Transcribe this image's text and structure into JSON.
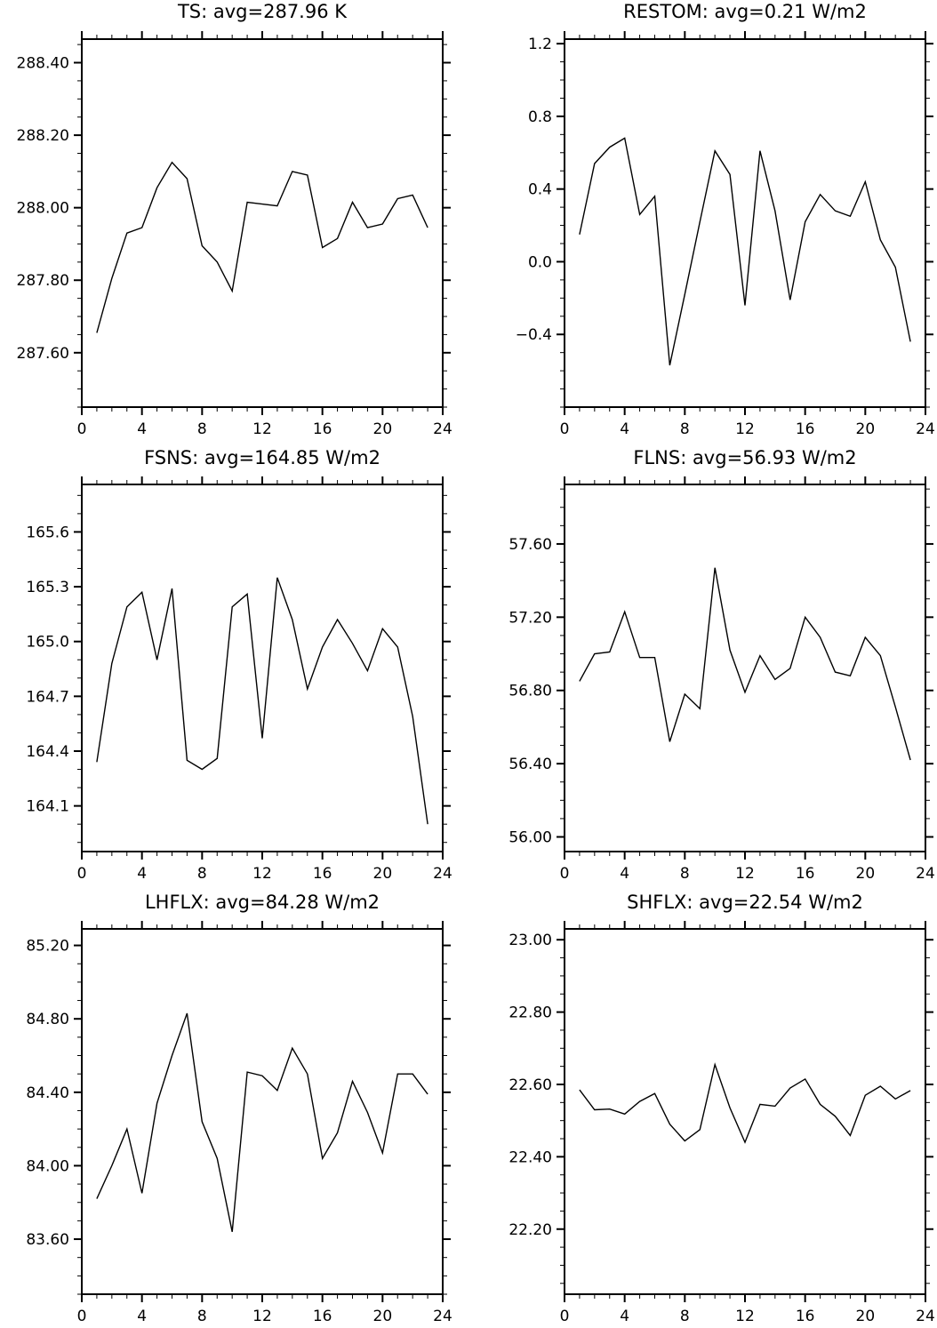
{
  "chart_data": [
    {
      "type": "line",
      "title": "TS: avg=287.96 K",
      "xlabel": "",
      "ylabel": "",
      "xlim": [
        0,
        24
      ],
      "ylim": [
        287.45,
        288.465
      ],
      "x_ticks": [
        0,
        4,
        8,
        12,
        16,
        20,
        24
      ],
      "x_tick_labels": [
        "0",
        "4",
        "8",
        "12",
        "16",
        "20",
        "24"
      ],
      "y_ticks": [
        287.6,
        287.8,
        288.0,
        288.2,
        288.4
      ],
      "y_tick_labels": [
        "287.60",
        "287.80",
        "288.00",
        "288.20",
        "288.40"
      ],
      "y_minor_step": 0.05,
      "grid": false,
      "x": [
        1,
        2,
        3,
        4,
        5,
        6,
        7,
        8,
        9,
        10,
        11,
        12,
        13,
        14,
        15,
        16,
        17,
        18,
        19,
        20,
        21,
        22,
        23
      ],
      "y": [
        287.655,
        287.805,
        287.93,
        287.945,
        288.055,
        288.125,
        288.08,
        287.895,
        287.85,
        287.77,
        288.015,
        288.01,
        288.005,
        288.1,
        288.09,
        287.89,
        287.915,
        288.015,
        287.945,
        287.955,
        288.025,
        288.035,
        287.945
      ]
    },
    {
      "type": "line",
      "title": "RESTOM: avg=0.21 W/m2",
      "xlabel": "",
      "ylabel": "",
      "xlim": [
        0,
        24
      ],
      "ylim": [
        -0.8,
        1.225
      ],
      "x_ticks": [
        0,
        4,
        8,
        12,
        16,
        20,
        24
      ],
      "x_tick_labels": [
        "0",
        "4",
        "8",
        "12",
        "16",
        "20",
        "24"
      ],
      "y_ticks": [
        -0.4,
        0.0,
        0.4,
        0.8,
        1.2
      ],
      "y_tick_labels": [
        "−0.4",
        "0.0",
        "0.4",
        "0.8",
        "1.2"
      ],
      "y_minor_step": 0.1,
      "grid": false,
      "x": [
        1,
        2,
        3,
        4,
        5,
        6,
        7,
        8,
        9,
        10,
        11,
        12,
        13,
        14,
        15,
        16,
        17,
        18,
        19,
        20,
        21,
        22,
        23
      ],
      "y": [
        0.15,
        0.54,
        0.63,
        0.68,
        0.26,
        0.36,
        -0.57,
        -0.18,
        0.22,
        0.61,
        0.48,
        -0.24,
        0.61,
        0.28,
        -0.21,
        0.22,
        0.37,
        0.28,
        0.25,
        0.44,
        0.12,
        -0.03,
        -0.44
      ]
    },
    {
      "type": "line",
      "title": "FSNS: avg=164.85 W/m2",
      "xlabel": "",
      "ylabel": "",
      "xlim": [
        0,
        24
      ],
      "ylim": [
        163.85,
        165.86
      ],
      "x_ticks": [
        0,
        4,
        8,
        12,
        16,
        20,
        24
      ],
      "x_tick_labels": [
        "0",
        "4",
        "8",
        "12",
        "16",
        "20",
        "24"
      ],
      "y_ticks": [
        164.1,
        164.4,
        164.7,
        165.0,
        165.3,
        165.6
      ],
      "y_tick_labels": [
        "164.1",
        "164.4",
        "164.7",
        "165.0",
        "165.3",
        "165.6"
      ],
      "y_minor_step": 0.1,
      "grid": false,
      "x": [
        1,
        2,
        3,
        4,
        5,
        6,
        7,
        8,
        9,
        10,
        11,
        12,
        13,
        14,
        15,
        16,
        17,
        18,
        19,
        20,
        21,
        22,
        23
      ],
      "y": [
        164.34,
        164.88,
        165.19,
        165.27,
        164.9,
        165.29,
        164.35,
        164.3,
        164.36,
        165.19,
        165.26,
        164.47,
        165.35,
        165.12,
        164.74,
        164.97,
        165.12,
        164.99,
        164.84,
        165.07,
        164.97,
        164.59,
        164.0
      ]
    },
    {
      "type": "line",
      "title": "FLNS: avg=56.93 W/m2",
      "xlabel": "",
      "ylabel": "",
      "xlim": [
        0,
        24
      ],
      "ylim": [
        55.92,
        57.925
      ],
      "x_ticks": [
        0,
        4,
        8,
        12,
        16,
        20,
        24
      ],
      "x_tick_labels": [
        "0",
        "4",
        "8",
        "12",
        "16",
        "20",
        "24"
      ],
      "y_ticks": [
        56.0,
        56.4,
        56.8,
        57.2,
        57.6
      ],
      "y_tick_labels": [
        "56.00",
        "56.40",
        "56.80",
        "57.20",
        "57.60"
      ],
      "y_minor_step": 0.1,
      "grid": false,
      "x": [
        1,
        2,
        3,
        4,
        5,
        6,
        7,
        8,
        9,
        10,
        11,
        12,
        13,
        14,
        15,
        16,
        17,
        18,
        19,
        20,
        21,
        22,
        23
      ],
      "y": [
        56.85,
        57.0,
        57.01,
        57.23,
        56.98,
        56.98,
        56.52,
        56.78,
        56.7,
        57.47,
        57.02,
        56.79,
        56.99,
        56.86,
        56.92,
        57.2,
        57.09,
        56.9,
        56.88,
        57.09,
        56.99,
        56.71,
        56.42
      ]
    },
    {
      "type": "line",
      "title": "LHFLX: avg=84.28 W/m2",
      "xlabel": "",
      "ylabel": "",
      "xlim": [
        0,
        24
      ],
      "ylim": [
        83.3,
        85.29
      ],
      "x_ticks": [
        0,
        4,
        8,
        12,
        16,
        20,
        24
      ],
      "x_tick_labels": [
        "0",
        "4",
        "8",
        "12",
        "16",
        "20",
        "24"
      ],
      "y_ticks": [
        83.6,
        84.0,
        84.4,
        84.8,
        85.2
      ],
      "y_tick_labels": [
        "83.60",
        "84.00",
        "84.40",
        "84.80",
        "85.20"
      ],
      "y_minor_step": 0.1,
      "grid": false,
      "x": [
        1,
        2,
        3,
        4,
        5,
        6,
        7,
        8,
        9,
        10,
        11,
        12,
        13,
        14,
        15,
        16,
        17,
        18,
        19,
        20,
        21,
        22,
        23
      ],
      "y": [
        83.82,
        84.0,
        84.2,
        83.85,
        84.34,
        84.6,
        84.83,
        84.24,
        84.04,
        83.64,
        84.51,
        84.49,
        84.41,
        84.64,
        84.5,
        84.04,
        84.18,
        84.46,
        84.29,
        84.07,
        84.5,
        84.5,
        84.39
      ]
    },
    {
      "type": "line",
      "title": "SHFLX: avg=22.54 W/m2",
      "xlabel": "",
      "ylabel": "",
      "xlim": [
        0,
        24
      ],
      "ylim": [
        22.02,
        23.03
      ],
      "x_ticks": [
        0,
        4,
        8,
        12,
        16,
        20,
        24
      ],
      "x_tick_labels": [
        "0",
        "4",
        "8",
        "12",
        "16",
        "20",
        "24"
      ],
      "y_ticks": [
        22.2,
        22.4,
        22.6,
        22.8,
        23.0
      ],
      "y_tick_labels": [
        "22.20",
        "22.40",
        "22.60",
        "22.80",
        "23.00"
      ],
      "y_minor_step": 0.05,
      "grid": false,
      "x": [
        1,
        2,
        3,
        4,
        5,
        6,
        7,
        8,
        9,
        10,
        11,
        12,
        13,
        14,
        15,
        16,
        17,
        18,
        19,
        20,
        21,
        22,
        23
      ],
      "y": [
        22.585,
        22.53,
        22.532,
        22.518,
        22.553,
        22.575,
        22.49,
        22.444,
        22.475,
        22.655,
        22.535,
        22.44,
        22.545,
        22.54,
        22.59,
        22.615,
        22.545,
        22.512,
        22.459,
        22.57,
        22.595,
        22.56,
        22.583
      ]
    }
  ]
}
